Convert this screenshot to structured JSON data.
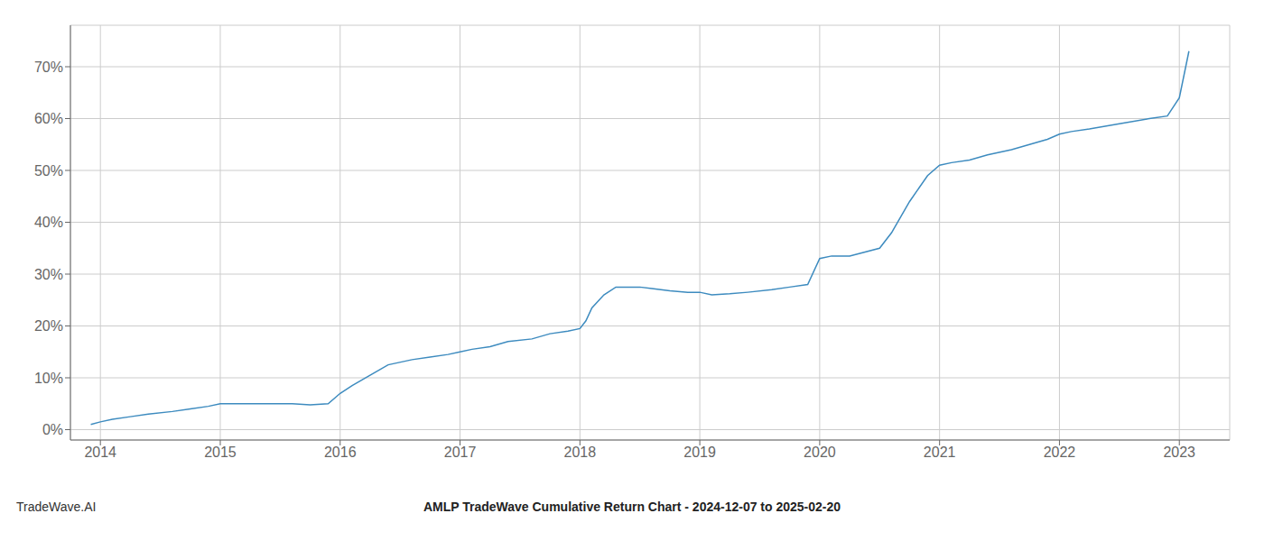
{
  "chart_data": {
    "type": "line",
    "title": "AMLP TradeWave Cumulative Return Chart - 2024-12-07 to 2025-02-20",
    "annotations": [
      "TradeWave.AI"
    ],
    "color": "#3d8bbf",
    "grid": true,
    "x": [
      2013.92,
      2014.0,
      2014.1,
      2014.25,
      2014.4,
      2014.6,
      2014.75,
      2014.9,
      2015.0,
      2015.1,
      2015.25,
      2015.4,
      2015.6,
      2015.75,
      2015.9,
      2016.0,
      2016.1,
      2016.25,
      2016.4,
      2016.6,
      2016.75,
      2016.9,
      2017.0,
      2017.1,
      2017.25,
      2017.4,
      2017.6,
      2017.75,
      2017.9,
      2018.0,
      2018.05,
      2018.1,
      2018.2,
      2018.3,
      2018.5,
      2018.6,
      2018.75,
      2018.9,
      2019.0,
      2019.1,
      2019.25,
      2019.4,
      2019.6,
      2019.75,
      2019.9,
      2020.0,
      2020.1,
      2020.25,
      2020.5,
      2020.6,
      2020.75,
      2020.9,
      2021.0,
      2021.1,
      2021.25,
      2021.4,
      2021.6,
      2021.75,
      2021.9,
      2022.0,
      2022.1,
      2022.25,
      2022.5,
      2022.75,
      2022.9,
      2023.0,
      2023.08
    ],
    "values": [
      1.0,
      1.5,
      2.0,
      2.5,
      3.0,
      3.5,
      4.0,
      4.5,
      5.0,
      5.0,
      5.0,
      5.0,
      5.0,
      4.8,
      5.0,
      7.0,
      8.5,
      10.5,
      12.5,
      13.5,
      14.0,
      14.5,
      15.0,
      15.5,
      16.0,
      17.0,
      17.5,
      18.5,
      19.0,
      19.5,
      21.0,
      23.5,
      26.0,
      27.5,
      27.5,
      27.2,
      26.8,
      26.5,
      26.5,
      26.0,
      26.2,
      26.5,
      27.0,
      27.5,
      28.0,
      33.0,
      33.5,
      33.5,
      35.0,
      38.0,
      44.0,
      49.0,
      51.0,
      51.5,
      52.0,
      53.0,
      54.0,
      55.0,
      56.0,
      57.0,
      57.5,
      58.0,
      59.0,
      60.0,
      60.5,
      64.0,
      73.0
    ],
    "xlim": [
      2013.75,
      2023.42
    ],
    "ylim": [
      -2,
      78
    ],
    "xticks": [
      2014,
      2015,
      2016,
      2017,
      2018,
      2019,
      2020,
      2021,
      2022,
      2023
    ],
    "yticks": [
      {
        "value": 0,
        "label": "0%"
      },
      {
        "value": 10,
        "label": "10%"
      },
      {
        "value": 20,
        "label": "20%"
      },
      {
        "value": 30,
        "label": "30%"
      },
      {
        "value": 40,
        "label": "40%"
      },
      {
        "value": 50,
        "label": "50%"
      },
      {
        "value": 60,
        "label": "60%"
      },
      {
        "value": 70,
        "label": "70%"
      }
    ]
  }
}
